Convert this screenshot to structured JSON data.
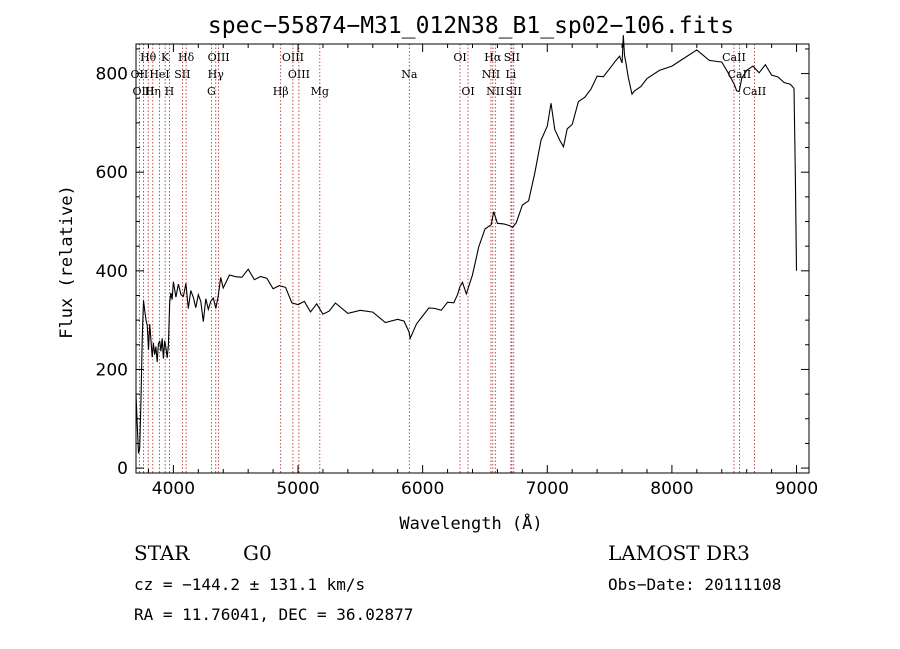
{
  "chart_data": {
    "type": "line",
    "title": "spec−55874−M31_012N38_B1_sp02−106.fits",
    "xlabel": "Wavelength (Å)",
    "ylabel": "Flux (relative)",
    "xlim": [
      3700,
      9100
    ],
    "ylim": [
      -10,
      860
    ],
    "xticks": [
      4000,
      5000,
      6000,
      7000,
      8000,
      9000
    ],
    "yticks": [
      0,
      200,
      400,
      600,
      800
    ],
    "xtick_labels": [
      "4000",
      "5000",
      "6000",
      "7000",
      "8000",
      "9000"
    ],
    "ytick_labels": [
      "0",
      "200",
      "400",
      "600",
      "800"
    ],
    "spectral_lines": [
      {
        "label": "Hθ",
        "wavelength": 3798,
        "row": 0
      },
      {
        "label": "OII",
        "wavelength": 3727,
        "row": 1
      },
      {
        "label": "OIII",
        "wavelength": 3760,
        "row": 2
      },
      {
        "label": "Hη",
        "wavelength": 3835,
        "row": 2
      },
      {
        "label": "HeI",
        "wavelength": 3889,
        "row": 1
      },
      {
        "label": "K",
        "wavelength": 3934,
        "row": 0
      },
      {
        "label": "H",
        "wavelength": 3968,
        "row": 2
      },
      {
        "label": "SII",
        "wavelength": 4072,
        "row": 1
      },
      {
        "label": "Hδ",
        "wavelength": 4102,
        "row": 0
      },
      {
        "label": "OIII",
        "wavelength": 4363,
        "row": 0
      },
      {
        "label": "Hγ",
        "wavelength": 4340,
        "row": 1
      },
      {
        "label": "G",
        "wavelength": 4305,
        "row": 2
      },
      {
        "label": "Hβ",
        "wavelength": 4861,
        "row": 2
      },
      {
        "label": "OIII",
        "wavelength": 4959,
        "row": 0
      },
      {
        "label": "OIII",
        "wavelength": 5007,
        "row": 1
      },
      {
        "label": "Mg",
        "wavelength": 5175,
        "row": 2
      },
      {
        "label": "Na",
        "wavelength": 5893,
        "row": 1
      },
      {
        "label": "OI",
        "wavelength": 6300,
        "row": 0
      },
      {
        "label": "OI",
        "wavelength": 6364,
        "row": 2
      },
      {
        "label": "Hα",
        "wavelength": 6563,
        "row": 0
      },
      {
        "label": "NII",
        "wavelength": 6548,
        "row": 1
      },
      {
        "label": "NII",
        "wavelength": 6583,
        "row": 2
      },
      {
        "label": "SII",
        "wavelength": 6716,
        "row": 0
      },
      {
        "label": "Li",
        "wavelength": 6708,
        "row": 1
      },
      {
        "label": "SII",
        "wavelength": 6731,
        "row": 2
      },
      {
        "label": "CaII",
        "wavelength": 8498,
        "row": 0
      },
      {
        "label": "CaII",
        "wavelength": 8542,
        "row": 1
      },
      {
        "label": "CaII",
        "wavelength": 8662,
        "row": 2
      }
    ],
    "series": [
      {
        "name": "flux",
        "x": [
          3700,
          3710,
          3720,
          3730,
          3740,
          3750,
          3760,
          3770,
          3780,
          3790,
          3800,
          3810,
          3820,
          3830,
          3840,
          3850,
          3860,
          3870,
          3880,
          3890,
          3900,
          3910,
          3920,
          3930,
          3940,
          3950,
          3960,
          3970,
          3980,
          3990,
          4000,
          4020,
          4040,
          4060,
          4080,
          4100,
          4120,
          4140,
          4160,
          4180,
          4200,
          4220,
          4240,
          4260,
          4280,
          4300,
          4320,
          4340,
          4360,
          4380,
          4400,
          4450,
          4500,
          4550,
          4600,
          4650,
          4700,
          4750,
          4800,
          4850,
          4900,
          4950,
          5000,
          5050,
          5100,
          5150,
          5200,
          5250,
          5300,
          5400,
          5500,
          5600,
          5700,
          5800,
          5850,
          5890,
          5900,
          5950,
          6000,
          6050,
          6100,
          6150,
          6200,
          6250,
          6280,
          6300,
          6320,
          6350,
          6400,
          6450,
          6500,
          6550,
          6570,
          6600,
          6650,
          6700,
          6720,
          6750,
          6800,
          6850,
          6900,
          6950,
          7000,
          7030,
          7060,
          7100,
          7130,
          7160,
          7200,
          7250,
          7300,
          7350,
          7400,
          7450,
          7500,
          7550,
          7580,
          7600,
          7610,
          7620,
          7630,
          7650,
          7680,
          7700,
          7750,
          7800,
          7900,
          8000,
          8100,
          8200,
          8300,
          8400,
          8450,
          8500,
          8520,
          8540,
          8560,
          8600,
          8650,
          8700,
          8750,
          8800,
          8850,
          8900,
          8950,
          8980,
          8990,
          9000
        ],
        "values": [
          150,
          90,
          30,
          40,
          140,
          260,
          340,
          320,
          300,
          290,
          240,
          300,
          260,
          220,
          260,
          230,
          240,
          220,
          250,
          250,
          240,
          260,
          230,
          260,
          240,
          230,
          250,
          330,
          360,
          340,
          370,
          350,
          370,
          360,
          350,
          370,
          330,
          360,
          340,
          330,
          350,
          330,
          300,
          340,
          330,
          340,
          340,
          330,
          350,
          380,
          370,
          390,
          380,
          390,
          400,
          390,
          390,
          380,
          370,
          370,
          360,
          340,
          330,
          330,
          320,
          330,
          320,
          320,
          330,
          320,
          320,
          310,
          300,
          300,
          290,
          280,
          260,
          300,
          310,
          320,
          330,
          320,
          330,
          340,
          350,
          360,
          380,
          350,
          400,
          450,
          480,
          500,
          520,
          490,
          500,
          490,
          480,
          500,
          530,
          550,
          600,
          660,
          700,
          740,
          680,
          670,
          650,
          680,
          700,
          740,
          760,
          770,
          790,
          800,
          810,
          820,
          840,
          820,
          870,
          840,
          820,
          800,
          760,
          760,
          780,
          790,
          800,
          820,
          830,
          840,
          830,
          820,
          810,
          780,
          760,
          770,
          790,
          800,
          820,
          800,
          810,
          800,
          790,
          790,
          780,
          770,
          600,
          400
        ]
      }
    ],
    "annotations": {
      "class": "STAR",
      "subclass": "G0",
      "survey": "LAMOST DR3",
      "cz": "cz = −144.2 ± 131.1 km/s",
      "obs_date": "Obs−Date: 20111108",
      "radec": "RA =  11.76041, DEC =  36.02877"
    }
  }
}
